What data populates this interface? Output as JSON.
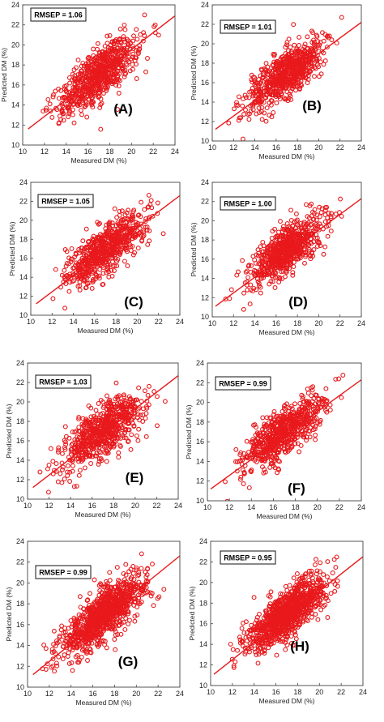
{
  "chart_data": [
    {
      "type": "scatter",
      "panel_label": "(A)",
      "rmsep_text": "RMSEP = 1.06",
      "xlabel": "Measured DM (%)",
      "ylabel": "Predicted DM (%)",
      "xlim": [
        10,
        24
      ],
      "ylim": [
        10,
        24
      ],
      "xticks": [
        10,
        12,
        14,
        16,
        18,
        20,
        22,
        24
      ],
      "yticks": [
        10,
        12,
        14,
        16,
        18,
        20,
        22,
        24
      ],
      "marker": "open-circle",
      "trend_line": [
        [
          10.5,
          11.6
        ],
        [
          24,
          22.9
        ]
      ],
      "marker_color": "#e8191c",
      "point_cloud": {
        "x_range": [
          11,
          23.5
        ],
        "center": [
          17,
          17
        ],
        "spread_along": 2.4,
        "spread_across": 1.05,
        "count": 700
      }
    },
    {
      "type": "scatter",
      "panel_label": "(B)",
      "rmsep_text": "RMSEP = 1.01",
      "xlabel": "Measured DM (%)",
      "ylabel": "Predicted DM (%)",
      "xlim": [
        10,
        24
      ],
      "ylim": [
        10,
        24
      ],
      "xticks": [
        10,
        12,
        14,
        16,
        18,
        20,
        22,
        24
      ],
      "yticks": [
        10,
        12,
        14,
        16,
        18,
        20,
        22,
        24
      ],
      "marker": "open-circle",
      "trend_line": [
        [
          10.3,
          11.2
        ],
        [
          24,
          22.2
        ]
      ],
      "marker_color": "#e8191c",
      "point_cloud": {
        "x_range": [
          11,
          23.5
        ],
        "center": [
          17,
          17
        ],
        "spread_along": 2.4,
        "spread_across": 1.0,
        "count": 700
      }
    },
    {
      "type": "scatter",
      "panel_label": "(C)",
      "rmsep_text": "RMSEP = 1.05",
      "xlabel": "Measured DM (%)",
      "ylabel": "Predicted DM (%)",
      "xlim": [
        10,
        24
      ],
      "ylim": [
        10,
        24
      ],
      "xticks": [
        10,
        12,
        14,
        16,
        18,
        20,
        22,
        24
      ],
      "yticks": [
        10,
        12,
        14,
        16,
        18,
        20,
        22,
        24
      ],
      "marker": "open-circle",
      "trend_line": [
        [
          10.5,
          11.2
        ],
        [
          24,
          22.6
        ]
      ],
      "marker_color": "#e8191c",
      "point_cloud": {
        "x_range": [
          11,
          23.5
        ],
        "center": [
          17,
          17
        ],
        "spread_along": 2.4,
        "spread_across": 1.05,
        "count": 700
      }
    },
    {
      "type": "scatter",
      "panel_label": "(D)",
      "rmsep_text": "RMSEP = 1.00",
      "xlabel": "Measured DM (%)",
      "ylabel": "Predicted DM (%)",
      "xlim": [
        10,
        24
      ],
      "ylim": [
        10,
        24
      ],
      "xticks": [
        10,
        12,
        14,
        16,
        18,
        20,
        22,
        24
      ],
      "yticks": [
        10,
        12,
        14,
        16,
        18,
        20,
        22,
        24
      ],
      "marker": "open-circle",
      "trend_line": [
        [
          10.3,
          11.1
        ],
        [
          24,
          22.3
        ]
      ],
      "marker_color": "#e8191c",
      "point_cloud": {
        "x_range": [
          11,
          23.5
        ],
        "center": [
          17,
          17
        ],
        "spread_along": 2.4,
        "spread_across": 1.0,
        "count": 700
      }
    },
    {
      "type": "scatter",
      "panel_label": "(E)",
      "rmsep_text": "RMSEP = 1.03",
      "xlabel": "Measured DM (%)",
      "ylabel": "Predicted DM (%)",
      "xlim": [
        10,
        24
      ],
      "ylim": [
        10,
        24
      ],
      "xticks": [
        10,
        12,
        14,
        16,
        18,
        20,
        22,
        24
      ],
      "yticks": [
        10,
        12,
        14,
        16,
        18,
        20,
        22,
        24
      ],
      "marker": "open-circle",
      "trend_line": [
        [
          10.5,
          11.2
        ],
        [
          24,
          22.7
        ]
      ],
      "marker_color": "#e8191c",
      "point_cloud": {
        "x_range": [
          11,
          23.5
        ],
        "center": [
          17,
          17
        ],
        "spread_along": 2.4,
        "spread_across": 1.03,
        "count": 700
      }
    },
    {
      "type": "scatter",
      "panel_label": "(F)",
      "rmsep_text": "RMSEP = 0.99",
      "xlabel": "Measured DM (%)",
      "ylabel": "Predicted DM (%)",
      "xlim": [
        10,
        24
      ],
      "ylim": [
        10,
        24
      ],
      "xticks": [
        10,
        12,
        14,
        16,
        18,
        20,
        22,
        24
      ],
      "yticks": [
        10,
        12,
        14,
        16,
        18,
        20,
        22,
        24
      ],
      "marker": "open-circle",
      "trend_line": [
        [
          10.3,
          11.2
        ],
        [
          24,
          22.3
        ]
      ],
      "marker_color": "#e8191c",
      "point_cloud": {
        "x_range": [
          11,
          23.5
        ],
        "center": [
          17,
          17
        ],
        "spread_along": 2.4,
        "spread_across": 0.99,
        "count": 700
      }
    },
    {
      "type": "scatter",
      "panel_label": "(G)",
      "rmsep_text": "RMSEP = 0.99",
      "xlabel": "Measured DM (%)",
      "ylabel": "Predicted DM (%)",
      "xlim": [
        10,
        24
      ],
      "ylim": [
        10,
        24
      ],
      "xticks": [
        10,
        12,
        14,
        16,
        18,
        20,
        22,
        24
      ],
      "yticks": [
        10,
        12,
        14,
        16,
        18,
        20,
        22,
        24
      ],
      "marker": "open-circle",
      "trend_line": [
        [
          10.5,
          11.2
        ],
        [
          24,
          22.6
        ]
      ],
      "marker_color": "#e8191c",
      "point_cloud": {
        "x_range": [
          11,
          23.5
        ],
        "center": [
          17,
          17
        ],
        "spread_along": 2.4,
        "spread_across": 0.99,
        "count": 1000
      }
    },
    {
      "type": "scatter",
      "panel_label": "(H)",
      "rmsep_text": "RMSEP = 0.95",
      "xlabel": "Measured DM (%)",
      "ylabel": "Predicted DM (%)",
      "xlim": [
        10,
        24
      ],
      "ylim": [
        10,
        24
      ],
      "xticks": [
        10,
        12,
        14,
        16,
        18,
        20,
        22,
        24
      ],
      "yticks": [
        10,
        12,
        14,
        16,
        18,
        20,
        22,
        24
      ],
      "marker": "open-circle",
      "trend_line": [
        [
          10.3,
          11.1
        ],
        [
          24,
          22.5
        ]
      ],
      "marker_color": "#e8191c",
      "point_cloud": {
        "x_range": [
          11,
          23.5
        ],
        "center": [
          17,
          17
        ],
        "spread_along": 2.4,
        "spread_across": 0.95,
        "count": 1000
      }
    }
  ]
}
